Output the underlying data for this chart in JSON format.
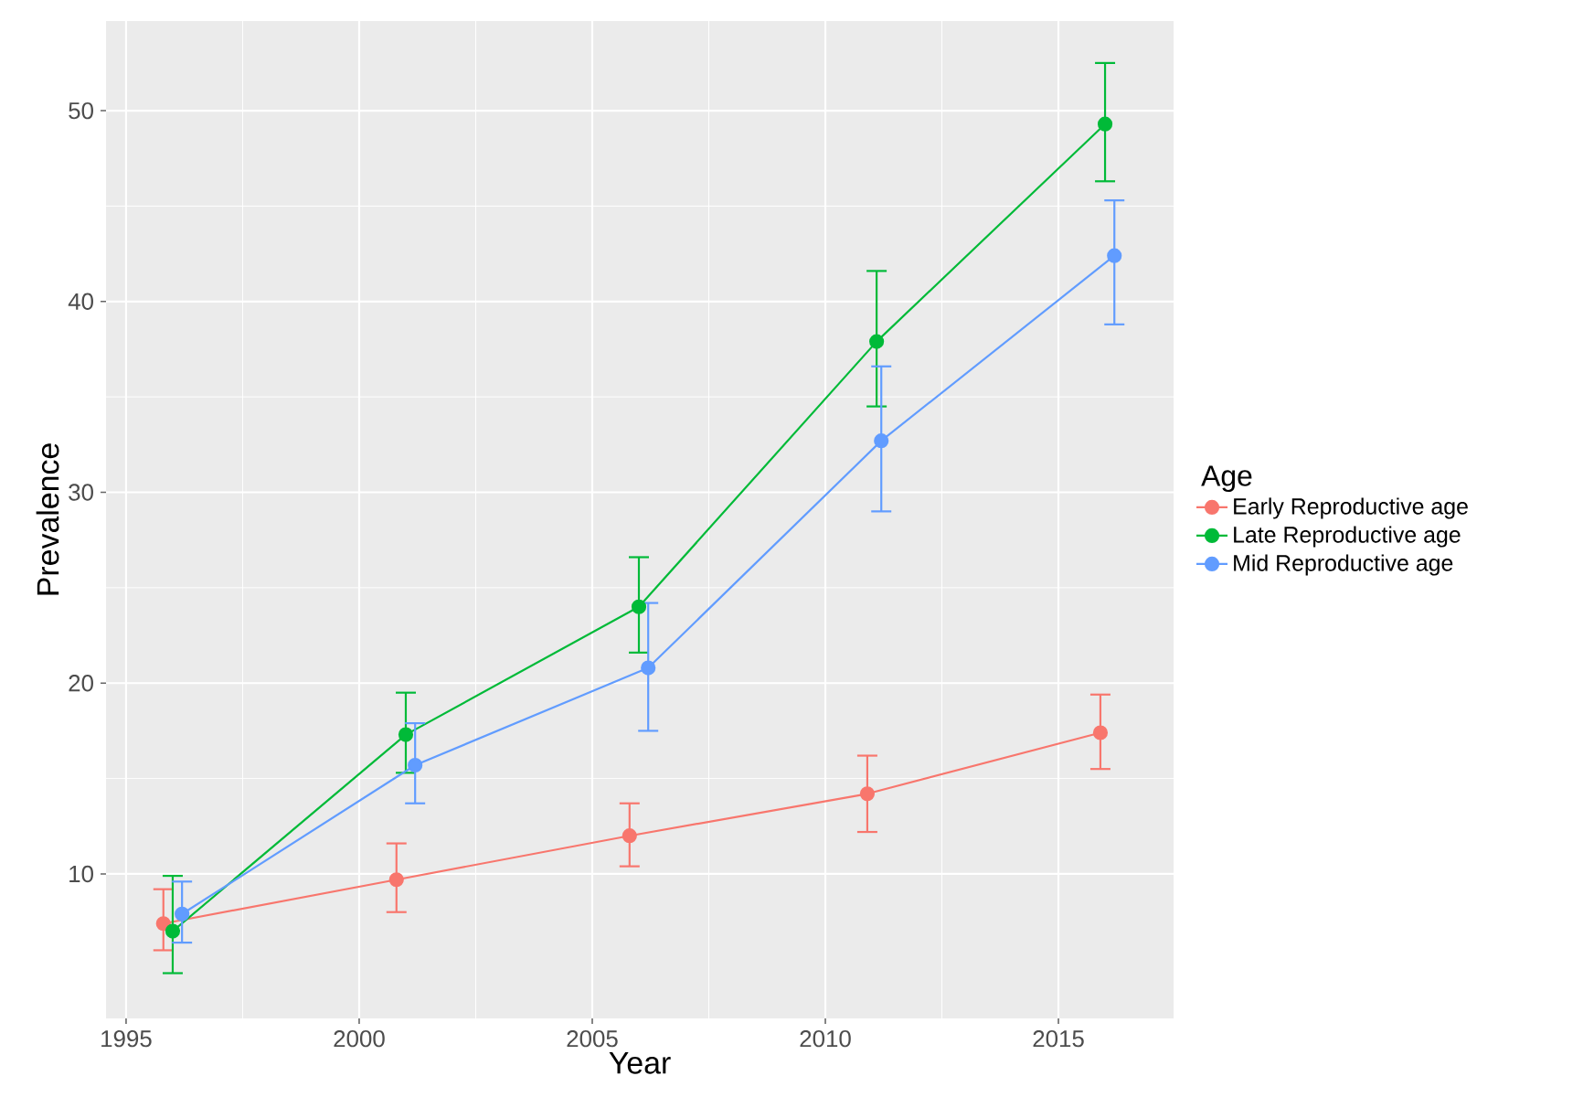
{
  "chart_data": {
    "type": "line",
    "xlabel": "Year",
    "ylabel": "Prevalence",
    "legend_title": "Age",
    "legend": "right",
    "grid": true,
    "marker": "circle",
    "line_style": "solid",
    "xlim": [
      1994.57,
      2017.47
    ],
    "ylim": [
      2.43,
      54.7
    ],
    "xticks": [
      1995,
      2000,
      2005,
      2010,
      2015
    ],
    "yticks": [
      10,
      20,
      30,
      40,
      50
    ],
    "series": [
      {
        "name": "Early Reproductive age",
        "color": "#F8766D",
        "x": [
          1995.8,
          2000.8,
          2005.8,
          2010.9,
          2015.9
        ],
        "values": [
          7.4,
          9.7,
          12.0,
          14.2,
          17.4
        ],
        "errors": [
          [
            6.0,
            9.2
          ],
          [
            8.0,
            11.6
          ],
          [
            10.4,
            13.7
          ],
          [
            12.2,
            16.2
          ],
          [
            15.5,
            19.4
          ]
        ]
      },
      {
        "name": "Late Reproductive age",
        "color": "#00BA38",
        "x": [
          1996.0,
          2001.0,
          2006.0,
          2011.1,
          2016.0
        ],
        "values": [
          7.0,
          17.3,
          24.0,
          37.9,
          49.3
        ],
        "errors": [
          [
            4.8,
            9.9
          ],
          [
            15.3,
            19.5
          ],
          [
            21.6,
            26.6
          ],
          [
            34.5,
            41.6
          ],
          [
            46.3,
            52.5
          ]
        ]
      },
      {
        "name": "Mid Reproductive age",
        "color": "#619CFF",
        "x": [
          1996.2,
          2001.2,
          2006.2,
          2011.2,
          2016.2
        ],
        "values": [
          7.9,
          15.7,
          20.8,
          32.7,
          42.4
        ],
        "errors": [
          [
            6.4,
            9.6
          ],
          [
            13.7,
            17.9
          ],
          [
            17.5,
            24.2
          ],
          [
            29.0,
            36.6
          ],
          [
            38.8,
            45.3
          ]
        ]
      }
    ]
  }
}
